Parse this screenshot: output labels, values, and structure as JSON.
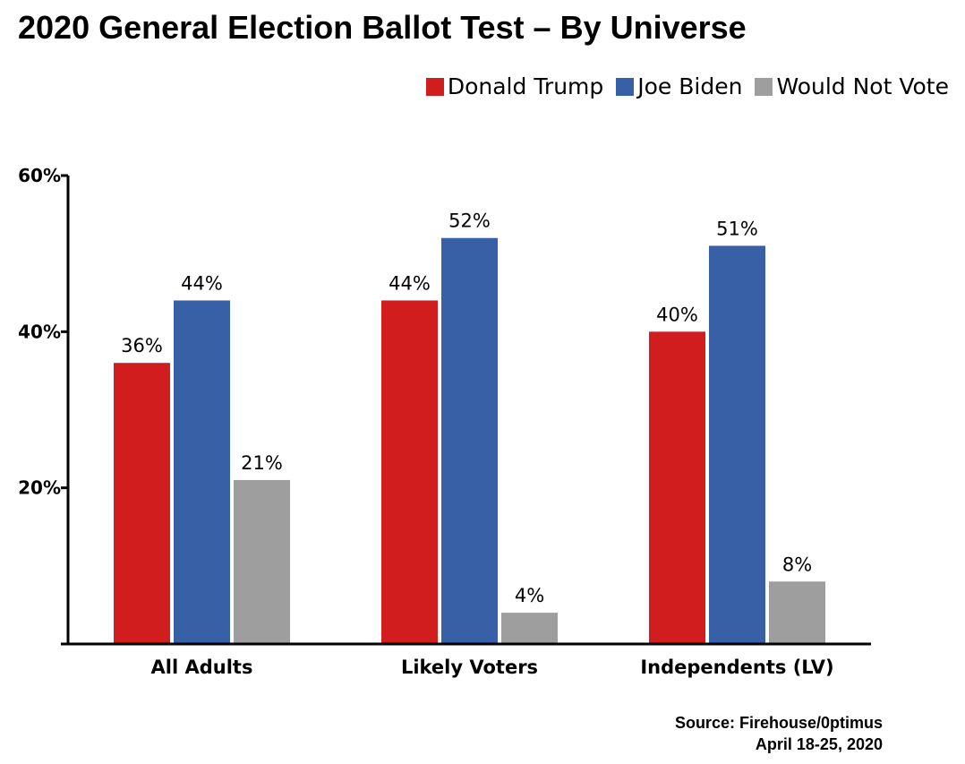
{
  "chart_data": {
    "type": "bar",
    "title": "2020 General Election Ballot Test – By Universe",
    "xlabel": "",
    "ylabel": "",
    "ylim": [
      0,
      60
    ],
    "yticks": [
      20,
      40,
      60
    ],
    "ytick_labels": [
      "20%",
      "40%",
      "60%"
    ],
    "grid": false,
    "legend_position": "top-right",
    "categories": [
      "All Adults",
      "Likely Voters",
      "Independents (LV)"
    ],
    "series": [
      {
        "name": "Donald Trump",
        "color": "#D21D1E",
        "values": [
          36,
          44,
          40
        ],
        "labels": [
          "36%",
          "44%",
          "40%"
        ]
      },
      {
        "name": "Joe Biden",
        "color": "#3760A6",
        "values": [
          44,
          52,
          51
        ],
        "labels": [
          "44%",
          "52%",
          "51%"
        ]
      },
      {
        "name": "Would Not Vote",
        "color": "#9E9E9E",
        "values": [
          21,
          4,
          8
        ],
        "labels": [
          "21%",
          "4%",
          "8%"
        ]
      }
    ]
  },
  "source": {
    "line1": "Source: Firehouse/0ptimus",
    "line2": "April 18-25, 2020"
  }
}
